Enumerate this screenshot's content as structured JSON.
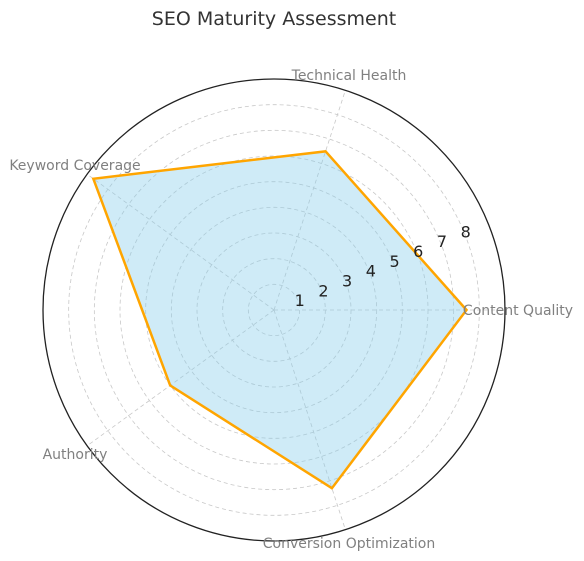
{
  "chart_data": {
    "type": "radar",
    "title": "SEO Maturity Assessment",
    "categories": [
      "Content Quality",
      "Technical Health",
      "Keyword Coverage",
      "Authority",
      "Conversion Optimization"
    ],
    "series": [
      {
        "values": [
          7.5,
          6.5,
          8.7,
          5.0,
          7.3
        ]
      }
    ],
    "radial_ticks": [
      1,
      2,
      3,
      4,
      5,
      6,
      7,
      8
    ],
    "rlim": [
      0,
      9
    ],
    "grid": true,
    "colors": {
      "line": "#FFA500",
      "fill": "#87CEEB",
      "grid": "#c8c8c8",
      "outline": "#222222"
    }
  }
}
